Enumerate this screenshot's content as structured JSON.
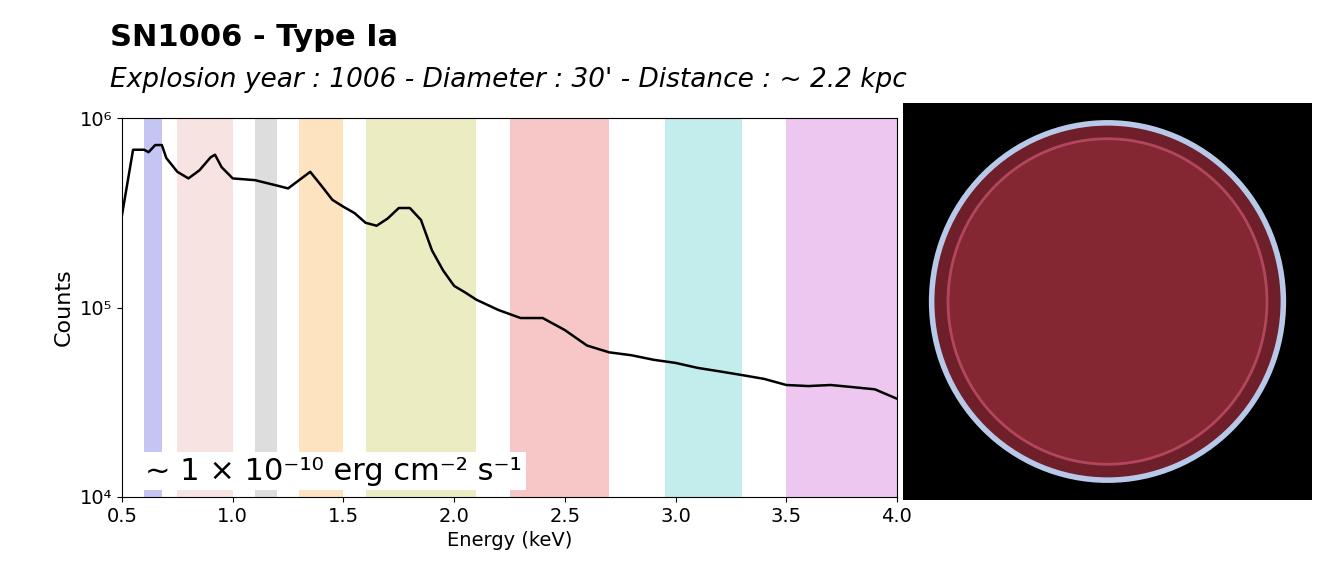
{
  "chart_data": {
    "type": "line",
    "title": "SN1006 - Type Ia",
    "subtitle": "Explosion year : 1006 - Diameter : 30' - Distance : ~ 2.2 kpc",
    "x_label": "Energy (keV)",
    "y_label": "Counts",
    "annotation": "~ 1 × 10⁻¹⁰ erg cm⁻² s⁻¹",
    "log": "y",
    "color": "#000000",
    "x": [
      0.5,
      0.55,
      0.6,
      0.62,
      0.65,
      0.68,
      0.7,
      0.75,
      0.8,
      0.85,
      0.9,
      0.92,
      0.95,
      1.0,
      1.1,
      1.2,
      1.25,
      1.3,
      1.35,
      1.4,
      1.45,
      1.5,
      1.55,
      1.6,
      1.65,
      1.7,
      1.75,
      1.8,
      1.85,
      1.9,
      1.95,
      2.0,
      2.05,
      2.1,
      2.2,
      2.3,
      2.4,
      2.5,
      2.6,
      2.7,
      2.8,
      2.9,
      3.0,
      3.1,
      3.2,
      3.3,
      3.4,
      3.5,
      3.6,
      3.7,
      3.8,
      3.9,
      4.0
    ],
    "values": [
      308000,
      680000,
      680000,
      660000,
      720000,
      720000,
      615000,
      520000,
      480000,
      530000,
      620000,
      640000,
      550000,
      480000,
      470000,
      440000,
      425000,
      470000,
      520000,
      440000,
      370000,
      340000,
      315000,
      280000,
      270000,
      295000,
      335000,
      335000,
      290000,
      200000,
      157000,
      130000,
      120000,
      110000,
      97000,
      88000,
      88000,
      76000,
      63000,
      58000,
      56000,
      53000,
      51000,
      48000,
      46000,
      44000,
      42000,
      39000,
      38500,
      39000,
      38000,
      37000,
      33000
    ],
    "bands": [
      {
        "range": [
          0.6,
          0.68
        ],
        "color": "#c5c5f3"
      },
      {
        "range": [
          0.75,
          1.0
        ],
        "color": "#f8e3e3"
      },
      {
        "range": [
          1.1,
          1.2
        ],
        "color": "#dddddd"
      },
      {
        "range": [
          1.3,
          1.5
        ],
        "color": "#fde3bf"
      },
      {
        "range": [
          1.6,
          2.1
        ],
        "color": "#ebecc1"
      },
      {
        "range": [
          2.25,
          2.7
        ],
        "color": "#f7c6c6"
      },
      {
        "range": [
          2.95,
          3.3
        ],
        "color": "#c3ecec"
      },
      {
        "range": [
          3.5,
          4.0
        ],
        "color": "#eec7f1"
      }
    ],
    "xlim": [
      0.5,
      4.0
    ],
    "ylim": [
      10000,
      1000000
    ],
    "xticks": [
      0.5,
      1.0,
      1.5,
      2.0,
      2.5,
      3.0,
      3.5,
      4.0
    ],
    "yticks": [
      {
        "value": 10000,
        "label": "10⁴"
      },
      {
        "value": 100000,
        "label": "10⁵"
      },
      {
        "value": 1000000,
        "label": "10⁶"
      }
    ],
    "grid": false
  }
}
